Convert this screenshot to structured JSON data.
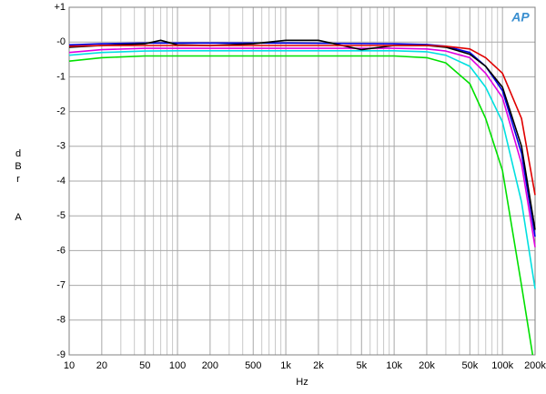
{
  "chart_data": {
    "type": "line",
    "xlabel": "Hz",
    "ylabel": "dBr  A",
    "logo": "AP",
    "xscale": "log",
    "grid": true,
    "xlim": [
      10,
      200000
    ],
    "ylim": [
      -9,
      1
    ],
    "xticks": [
      10,
      20,
      50,
      100,
      200,
      500,
      {
        "value": 1000,
        "label": "1k"
      },
      {
        "value": 2000,
        "label": "2k"
      },
      {
        "value": 5000,
        "label": "5k"
      },
      {
        "value": 10000,
        "label": "10k"
      },
      {
        "value": 20000,
        "label": "20k"
      },
      {
        "value": 50000,
        "label": "50k"
      },
      {
        "value": 100000,
        "label": "100k"
      },
      {
        "value": 200000,
        "label": "200k"
      }
    ],
    "xminor": [
      30,
      40,
      60,
      70,
      80,
      90,
      300,
      400,
      600,
      700,
      800,
      900,
      3000,
      4000,
      6000,
      7000,
      8000,
      9000,
      30000,
      40000,
      60000,
      70000,
      80000,
      90000,
      300000
    ],
    "yticks": [
      {
        "value": 1,
        "label": "+1"
      },
      {
        "value": 0,
        "label": "-0"
      },
      -1,
      -2,
      -3,
      -4,
      -5,
      -6,
      -7,
      -8,
      -9
    ],
    "series": [
      {
        "name": "red",
        "color": "#e00000",
        "x": [
          10,
          20,
          50,
          100,
          1000,
          10000,
          20000,
          30000,
          50000,
          70000,
          100000,
          150000,
          200000
        ],
        "values": [
          -0.12,
          -0.1,
          -0.1,
          -0.1,
          -0.1,
          -0.1,
          -0.1,
          -0.12,
          -0.2,
          -0.45,
          -0.9,
          -2.2,
          -4.4
        ]
      },
      {
        "name": "black",
        "color": "#000000",
        "x": [
          10,
          20,
          50,
          70,
          100,
          200,
          500,
          1000,
          2000,
          5000,
          10000,
          20000,
          30000,
          50000,
          70000,
          100000,
          150000,
          200000
        ],
        "values": [
          -0.15,
          -0.1,
          -0.05,
          0.05,
          -0.08,
          -0.1,
          -0.05,
          0.05,
          0.05,
          -0.22,
          -0.1,
          -0.1,
          -0.15,
          -0.35,
          -0.7,
          -1.3,
          -3.0,
          -5.4
        ]
      },
      {
        "name": "blue",
        "color": "#0000e0",
        "x": [
          10,
          20,
          50,
          100,
          1000,
          10000,
          20000,
          30000,
          50000,
          70000,
          100000,
          150000,
          200000
        ],
        "values": [
          -0.08,
          -0.05,
          -0.03,
          -0.03,
          -0.03,
          -0.05,
          -0.07,
          -0.12,
          -0.3,
          -0.7,
          -1.4,
          -3.2,
          -5.6
        ]
      },
      {
        "name": "magenta",
        "color": "#e000e0",
        "x": [
          10,
          20,
          50,
          100,
          1000,
          10000,
          20000,
          30000,
          50000,
          70000,
          100000,
          150000,
          200000
        ],
        "values": [
          -0.3,
          -0.22,
          -0.18,
          -0.18,
          -0.18,
          -0.18,
          -0.2,
          -0.26,
          -0.45,
          -0.9,
          -1.6,
          -3.5,
          -5.9
        ]
      },
      {
        "name": "cyan",
        "color": "#00e0e0",
        "x": [
          10,
          20,
          50,
          100,
          1000,
          10000,
          20000,
          30000,
          50000,
          70000,
          100000,
          150000,
          200000
        ],
        "values": [
          -0.38,
          -0.3,
          -0.26,
          -0.25,
          -0.25,
          -0.25,
          -0.28,
          -0.38,
          -0.7,
          -1.3,
          -2.3,
          -4.6,
          -7.1
        ]
      },
      {
        "name": "green",
        "color": "#00e000",
        "x": [
          10,
          20,
          50,
          100,
          1000,
          10000,
          20000,
          30000,
          50000,
          70000,
          100000,
          150000,
          190000
        ],
        "values": [
          -0.55,
          -0.45,
          -0.4,
          -0.4,
          -0.4,
          -0.4,
          -0.45,
          -0.6,
          -1.2,
          -2.2,
          -3.7,
          -7.0,
          -9.0
        ]
      }
    ]
  }
}
